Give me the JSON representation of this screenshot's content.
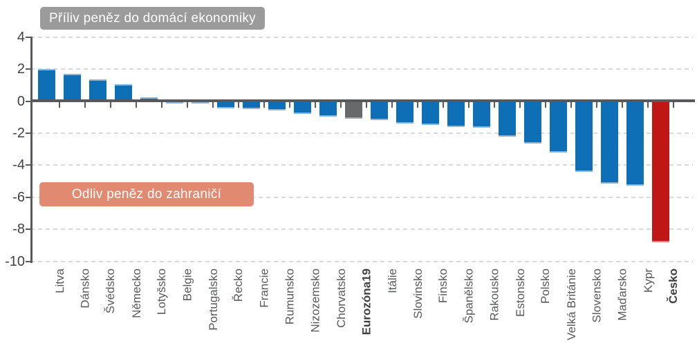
{
  "chart_data": {
    "type": "bar",
    "title": "",
    "xlabel": "",
    "ylabel": "",
    "categories": [
      "Litva",
      "Dánsko",
      "Švédsko",
      "Německo",
      "Lotyšsko",
      "Belgie",
      "Portugalsko",
      "Řecko",
      "Francie",
      "Rumunsko",
      "Nizozemsko",
      "Chorvatsko",
      "Eurozóna19",
      "Itálie",
      "Slovinsko",
      "Finsko",
      "Španělsko",
      "Rakousko",
      "Estonsko",
      "Polsko",
      "Velká Británie",
      "Slovensko",
      "Maďarsko",
      "Kypr",
      "Česko"
    ],
    "values": [
      2.0,
      1.7,
      1.35,
      1.05,
      0.25,
      -0.15,
      -0.15,
      -0.45,
      -0.5,
      -0.6,
      -0.8,
      -0.95,
      -1.1,
      -1.2,
      -1.4,
      -1.5,
      -1.6,
      -1.65,
      -2.2,
      -2.65,
      -3.2,
      -4.4,
      -5.15,
      -5.3,
      -8.8
    ],
    "highlight_gray": "Eurozóna19",
    "highlight_red": "Česko",
    "bold_categories": [
      "Eurozóna19",
      "Česko"
    ],
    "yticks": [
      4,
      2,
      0,
      -2,
      -4,
      -6,
      -8,
      -10
    ],
    "ylim": [
      -10,
      4.3
    ],
    "grid": "horizontal-dashed",
    "legend": "none",
    "annotations": {
      "inflow": "Příliv peněz do domácí ekonomiky",
      "outflow": "Odliv peněz do zahraničí"
    }
  },
  "palette": {
    "bar_blue": "#0f6fb6",
    "bar_blue_edge": "#8ab6da",
    "bar_gray": "#68696b",
    "bar_gray_edge": "#a7a8aa",
    "bar_red": "#bf1616",
    "bar_red_edge": "#da8c85",
    "axis": "#58595b",
    "gridline": "#d9d9d9",
    "ytick_text": "#414042",
    "xtick_text": "#58595b",
    "inflow_bg": "#9b9b9b",
    "outflow_bg": "#e18a71",
    "annotation_text": "#ffffff"
  }
}
